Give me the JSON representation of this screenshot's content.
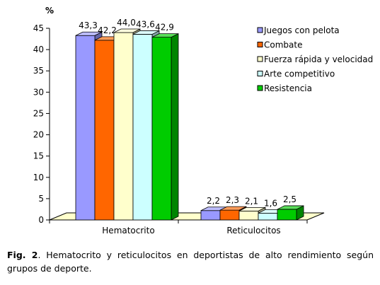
{
  "chart_data": {
    "type": "bar",
    "unit_label": "%",
    "categories": [
      "Hematocrito",
      "Reticulocitos"
    ],
    "series": [
      {
        "name": "Juegos con pelota",
        "color": "#9999ff",
        "values": [
          43.3,
          2.2
        ],
        "labels": [
          "43,3",
          "2,2"
        ]
      },
      {
        "name": "Combate",
        "color": "#ff6600",
        "values": [
          42.2,
          2.3
        ],
        "labels": [
          "42,2",
          "2,3"
        ]
      },
      {
        "name": "Fuerza rápida y velocidad",
        "color": "#ffffcc",
        "values": [
          44.0,
          2.1
        ],
        "labels": [
          "44,0",
          "2,1"
        ]
      },
      {
        "name": "Arte competitivo",
        "color": "#ccffff",
        "values": [
          43.6,
          1.6
        ],
        "labels": [
          "43,6",
          "1,6"
        ]
      },
      {
        "name": "Resistencia",
        "color": "#00cc00",
        "values": [
          42.9,
          2.5
        ],
        "labels": [
          "42,9",
          "2,5"
        ]
      }
    ],
    "yticks": [
      "0",
      "5",
      "10",
      "15",
      "20",
      "25",
      "30",
      "35",
      "40",
      "45"
    ],
    "ylim": [
      0,
      45
    ],
    "grid": false,
    "legend_position": "right",
    "floor_color": "#ffffcc"
  },
  "caption": {
    "label": "Fig. 2",
    "text": ". Hematocrito y reticulocitos en deportistas de alto rendimiento según grupos de deporte."
  }
}
